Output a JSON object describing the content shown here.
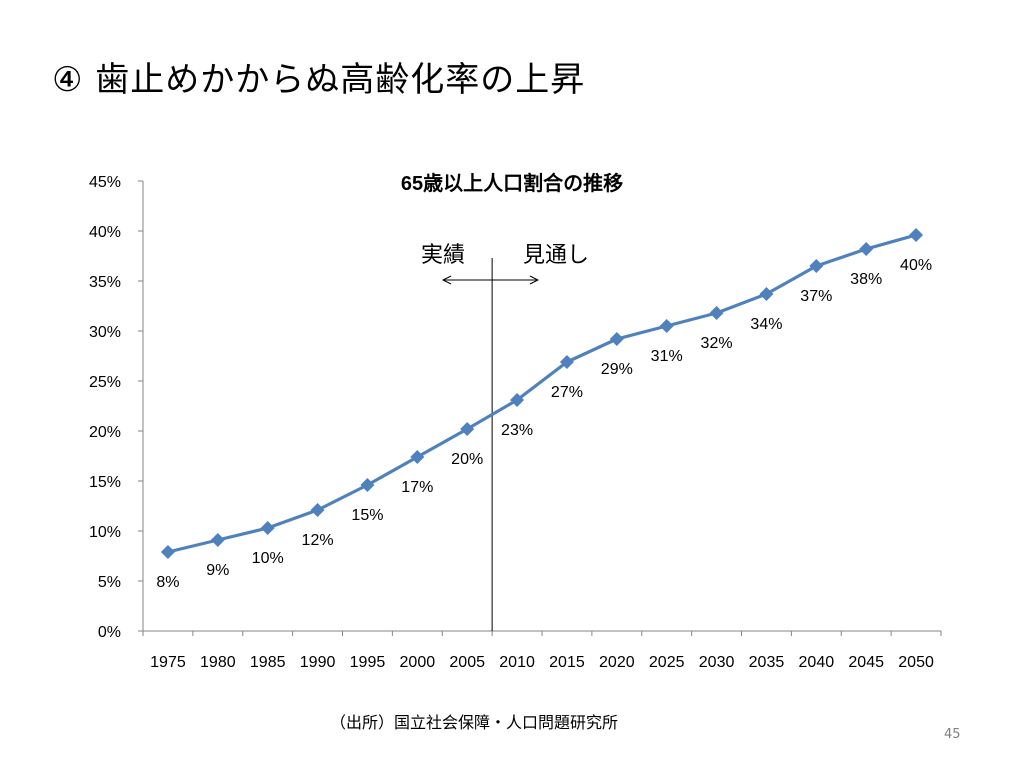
{
  "slide": {
    "title": "④ 歯止めかからぬ高齢化率の上昇",
    "source_note": "（出所）国立社会保障・人口問題研究所",
    "page_number": "45"
  },
  "chart_data": {
    "type": "line",
    "title": "65歳以上人口割合の推移",
    "xlabel": "",
    "ylabel": "",
    "categories": [
      "1975",
      "1980",
      "1985",
      "1990",
      "1995",
      "2000",
      "2005",
      "2010",
      "2015",
      "2020",
      "2025",
      "2030",
      "2035",
      "2040",
      "2045",
      "2050"
    ],
    "series": [
      {
        "values": [
          7.9,
          9.1,
          10.3,
          12.1,
          14.6,
          17.4,
          20.2,
          23.1,
          26.9,
          29.2,
          30.5,
          31.8,
          33.7,
          36.5,
          38.2,
          39.6
        ],
        "data_labels": [
          "8%",
          "9%",
          "10%",
          "12%",
          "15%",
          "17%",
          "20%",
          "23%",
          "27%",
          "29%",
          "31%",
          "32%",
          "34%",
          "37%",
          "38%",
          "40%"
        ]
      }
    ],
    "ylim": [
      0,
      45
    ],
    "y_tick_labels": [
      "0%",
      "5%",
      "10%",
      "15%",
      "20%",
      "25%",
      "30%",
      "35%",
      "40%",
      "45%"
    ],
    "grid": false,
    "legend": "none",
    "line_color": "#4F81BD",
    "marker": "diamond",
    "annotations": {
      "divider_after_category": "2005",
      "left_label": "実績",
      "right_label": "見通し"
    }
  }
}
